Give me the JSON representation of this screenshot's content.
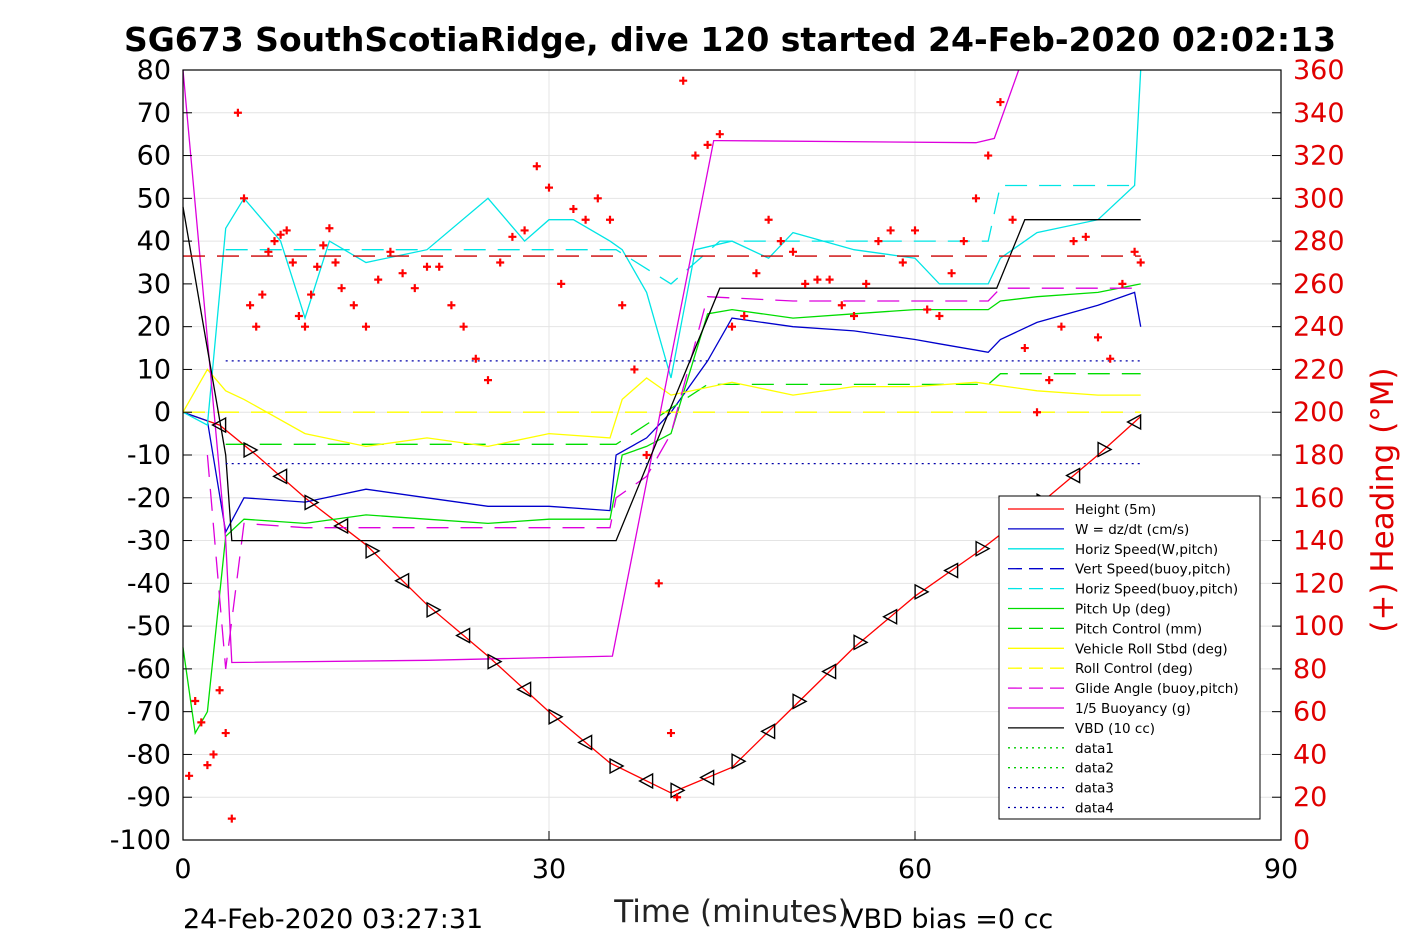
{
  "chart_data": {
    "type": "line",
    "title": "SG673 SouthScotiaRidge, dive 120 started 24-Feb-2020 02:02:13",
    "xlabel": "Time (minutes)",
    "ylabel": "",
    "y2label": "(+) Heading (°M)",
    "xlim": [
      0,
      90
    ],
    "ylim": [
      -100,
      80
    ],
    "y2lim": [
      0,
      360
    ],
    "xticks": [
      "0",
      "30",
      "60",
      "90"
    ],
    "yticks": [
      "80",
      "70",
      "60",
      "50",
      "40",
      "30",
      "20",
      "10",
      "0",
      "-10",
      "-20",
      "-30",
      "-40",
      "-50",
      "-60",
      "-70",
      "-80",
      "-90",
      "-100"
    ],
    "y2ticks": [
      "360",
      "340",
      "320",
      "300",
      "280",
      "260",
      "240",
      "220",
      "200",
      "180",
      "160",
      "140",
      "120",
      "100",
      "80",
      "60",
      "40",
      "20",
      "0"
    ],
    "grid": true,
    "legend_position": "lower-right",
    "footer_left": "24-Feb-2020 03:27:31",
    "footer_right": "VBD bias =0 cc",
    "legend": [
      "Height (5m)",
      "W = dz/dt (cm/s)",
      "Horiz Speed(W,pitch)",
      "Vert Speed(buoy,pitch)",
      "Horiz Speed(buoy,pitch)",
      "Pitch Up (deg)",
      "Pitch Control (mm)",
      "Vehicle Roll Stbd (deg)",
      "Roll Control (deg)",
      "Glide Angle (buoy,pitch)",
      "1/5 Buoyancy (g)",
      "VBD (10 cc)",
      "data1",
      "data2",
      "data3",
      "data4"
    ],
    "series": [
      {
        "name": "Height (5m)",
        "color": "#ff0000",
        "style": "solid",
        "x": [
          0,
          3,
          6,
          10,
          15,
          20,
          25,
          30,
          35,
          40,
          45,
          50,
          55,
          60,
          65,
          70,
          75,
          78.5
        ],
        "y": [
          0,
          -3,
          -10,
          -20,
          -31,
          -45,
          -57,
          -70,
          -82,
          -89,
          -83,
          -69,
          -55,
          -43,
          -33,
          -22,
          -10,
          -1
        ]
      },
      {
        "name": "W = dz/dt (cm/s)",
        "color": "#0000cc",
        "style": "solid",
        "x": [
          0,
          2,
          3.5,
          5,
          10,
          15,
          20,
          25,
          30,
          35,
          35.5,
          38,
          40,
          43,
          45,
          50,
          55,
          60,
          62,
          66,
          67,
          70,
          75,
          78,
          78.5
        ],
        "y": [
          0,
          -2,
          -28,
          -20,
          -21,
          -18,
          -20,
          -22,
          -22,
          -23,
          -10,
          -6,
          0,
          12,
          22,
          20,
          19,
          17,
          16,
          14,
          17,
          21,
          25,
          28,
          20
        ]
      },
      {
        "name": "Horiz Speed(W,pitch)",
        "color": "#00e5e5",
        "style": "solid",
        "x": [
          0,
          2,
          3.5,
          5,
          8,
          10,
          12,
          15,
          20,
          25,
          28,
          30,
          32,
          35,
          36,
          38,
          40,
          42,
          45,
          48,
          50,
          55,
          60,
          62,
          66,
          67,
          70,
          75,
          78,
          78.5
        ],
        "y": [
          0,
          -3,
          43,
          50,
          40,
          22,
          40,
          35,
          38,
          50,
          40,
          45,
          45,
          40,
          38,
          28,
          8,
          38,
          40,
          36,
          42,
          38,
          36,
          30,
          30,
          36,
          42,
          45,
          53,
          80
        ]
      },
      {
        "name": "Vert Speed(buoy,pitch)",
        "color": "#0000cc",
        "style": "dashed",
        "x": [],
        "y": []
      },
      {
        "name": "Horiz Speed(buoy,pitch)",
        "color": "#00e5e5",
        "style": "dashed",
        "x": [
          3.5,
          10,
          20,
          30,
          35.5,
          40,
          44,
          55,
          66,
          67,
          75,
          78.5
        ],
        "y": [
          38,
          38,
          38,
          38,
          38,
          30,
          40,
          40,
          40,
          53,
          53,
          53
        ]
      },
      {
        "name": "Pitch Up (deg)",
        "color": "#00dd00",
        "style": "solid",
        "x": [
          0,
          1,
          2,
          3.5,
          5,
          10,
          15,
          20,
          25,
          30,
          35,
          36,
          38,
          40,
          43,
          45,
          50,
          55,
          60,
          66,
          67,
          70,
          75,
          78.5
        ],
        "y": [
          -55,
          -75,
          -70,
          -29,
          -25,
          -26,
          -24,
          -25,
          -26,
          -25,
          -25,
          -10,
          -8,
          -5,
          23,
          24,
          22,
          23,
          24,
          24,
          26,
          27,
          28,
          30
        ]
      },
      {
        "name": "Pitch Control (mm)",
        "color": "#00dd00",
        "style": "dashed",
        "x": [
          3.5,
          35.5,
          43,
          66,
          67,
          78.5
        ],
        "y": [
          -7.5,
          -7.5,
          6.5,
          6.5,
          9,
          9
        ]
      },
      {
        "name": "Vehicle Roll Stbd (deg)",
        "color": "#ffff00",
        "style": "solid",
        "x": [
          0,
          2,
          3.5,
          5,
          10,
          15,
          20,
          25,
          30,
          35,
          36,
          38,
          40,
          45,
          50,
          55,
          60,
          65,
          70,
          75,
          78.5
        ],
        "y": [
          0,
          10,
          5,
          3,
          -5,
          -8,
          -6,
          -8,
          -5,
          -6,
          3,
          8,
          4,
          7,
          4,
          6,
          6,
          7,
          5,
          4,
          4
        ]
      },
      {
        "name": "Roll Control (deg)",
        "color": "#ffff00",
        "style": "dashed",
        "x": [
          0,
          78.5
        ],
        "y": [
          0,
          0
        ]
      },
      {
        "name": "Glide Angle (buoy,pitch)",
        "color": "#dd00dd",
        "style": "dashed",
        "x": [
          2,
          3.5,
          5,
          10,
          20,
          30,
          35,
          35.5,
          38,
          40,
          43,
          50,
          60,
          66,
          67,
          75,
          78.5
        ],
        "y": [
          -10,
          -60,
          -26,
          -27,
          -27,
          -27,
          -27,
          -20,
          -15,
          -5,
          27,
          26,
          26,
          26,
          29,
          29,
          29
        ]
      },
      {
        "name": "1/5 Buoyancy (g)",
        "color": "#dd00dd",
        "style": "solid",
        "x": [
          0,
          3.5,
          4,
          20,
          35.2,
          43.5,
          44,
          65,
          66.5,
          68.5
        ],
        "y": [
          80,
          -30,
          -58.5,
          -58,
          -57,
          63.5,
          63.5,
          63,
          64,
          80
        ]
      },
      {
        "name": "VBD (10 cc)",
        "color": "#000000",
        "style": "solid",
        "x": [
          0,
          3.5,
          4,
          20,
          35.5,
          44,
          45,
          66.7,
          69,
          78.5
        ],
        "y": [
          48,
          -10,
          -30,
          -30,
          -30,
          29,
          29,
          29,
          45,
          45
        ]
      },
      {
        "name": "data1",
        "color": "#00cc00",
        "style": "dotted",
        "x": [],
        "y": []
      },
      {
        "name": "data2",
        "color": "#00cc00",
        "style": "dotted",
        "x": [],
        "y": []
      },
      {
        "name": "data3",
        "color": "#0000aa",
        "style": "dotted",
        "x": [
          3.5,
          78.5
        ],
        "y": [
          12,
          12
        ]
      },
      {
        "name": "data4",
        "color": "#0000aa",
        "style": "dotted",
        "x": [
          3.5,
          78.5
        ],
        "y": [
          -12,
          -12
        ]
      }
    ],
    "reference_line": {
      "color": "#cc0000",
      "style": "dashed",
      "x": [
        0,
        78.5
      ],
      "y": [
        36.5,
        36.5
      ]
    },
    "heading": {
      "axis": "right",
      "color": "#ff0000",
      "marker": "+",
      "x": [
        0.5,
        1,
        1.5,
        2,
        2.5,
        3,
        3.5,
        4,
        4.5,
        5,
        5.5,
        6,
        6.5,
        7,
        7.5,
        8,
        8.5,
        9,
        9.5,
        10,
        10.5,
        11,
        11.5,
        12,
        12.5,
        13,
        14,
        15,
        16,
        17,
        18,
        19,
        20,
        21,
        22,
        23,
        24,
        25,
        26,
        27,
        28,
        29,
        30,
        31,
        32,
        33,
        34,
        35,
        36,
        37,
        38,
        39,
        40,
        40.5,
        41,
        42,
        43,
        44,
        45,
        46,
        47,
        48,
        49,
        50,
        51,
        52,
        53,
        54,
        55,
        56,
        57,
        58,
        59,
        60,
        61,
        62,
        63,
        64,
        65,
        66,
        67,
        68,
        69,
        70,
        71,
        72,
        73,
        74,
        75,
        76,
        77,
        78,
        78.5
      ],
      "y": [
        30,
        65,
        55,
        35,
        40,
        70,
        50,
        10,
        340,
        300,
        250,
        240,
        255,
        275,
        280,
        283,
        285,
        270,
        245,
        240,
        255,
        268,
        278,
        286,
        270,
        258,
        250,
        240,
        262,
        275,
        265,
        258,
        268,
        268,
        250,
        240,
        225,
        215,
        270,
        282,
        285,
        315,
        305,
        260,
        295,
        290,
        300,
        290,
        250,
        220,
        180,
        120,
        50,
        20,
        355,
        320,
        325,
        330,
        240,
        245,
        265,
        290,
        280,
        275,
        260,
        262,
        262,
        250,
        245,
        260,
        280,
        285,
        270,
        285,
        248,
        245,
        265,
        280,
        300,
        320,
        345,
        290,
        230,
        200,
        215,
        240,
        280,
        282,
        235,
        225,
        260,
        275,
        270
      ]
    }
  }
}
